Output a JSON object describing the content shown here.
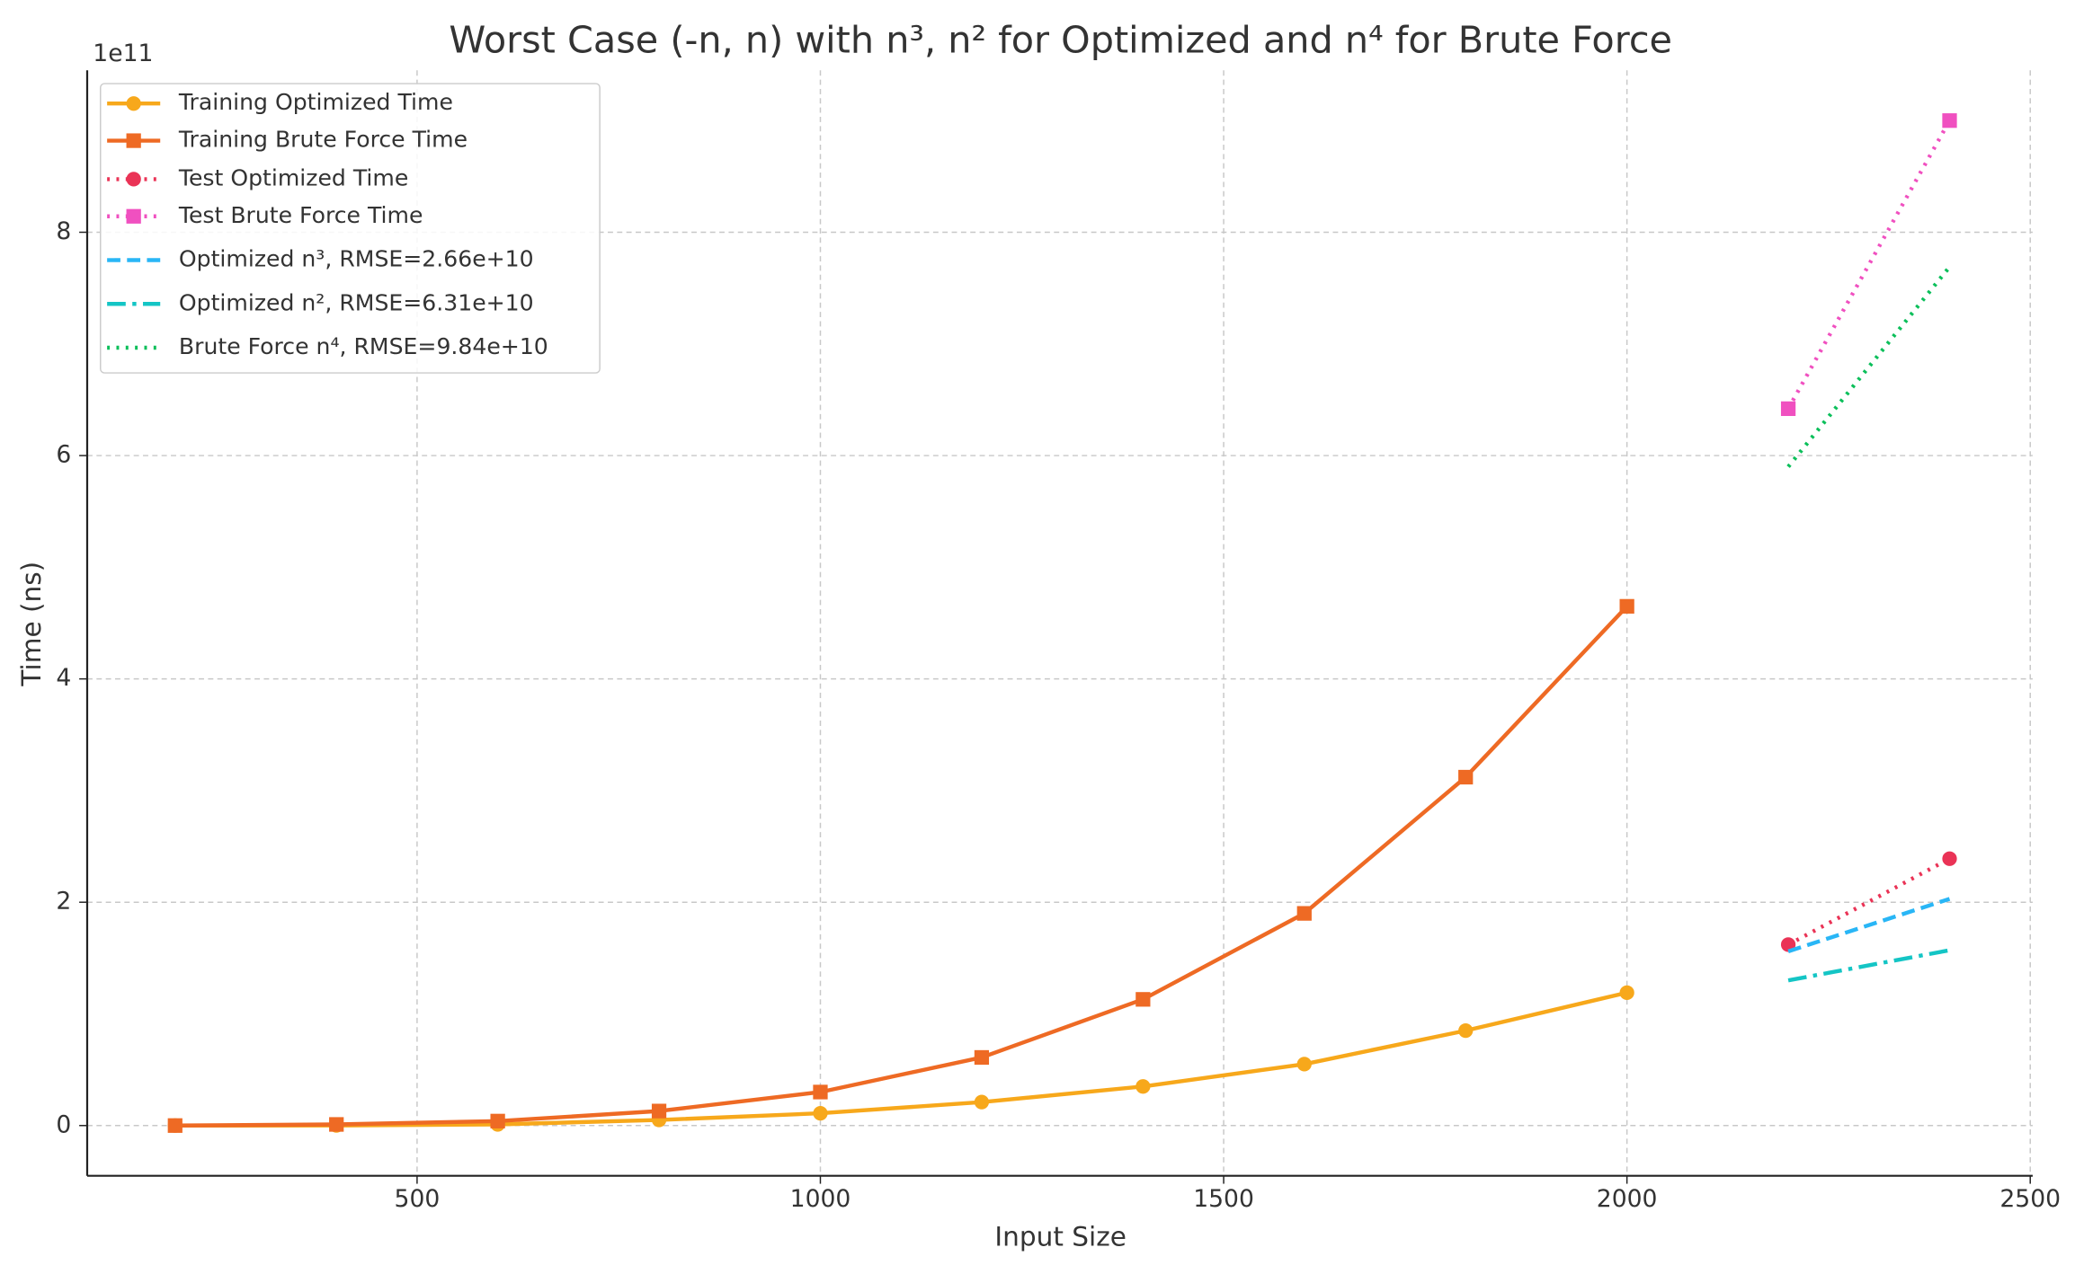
{
  "chart_data": {
    "type": "line",
    "title": "Worst Case (-n, n) with n³, n² for Optimized and n⁴ for Brute Force",
    "x_label": "Input Size",
    "y_label": "Time (ns)",
    "y_offset_label": "1e11",
    "xlim": [
      91,
      2503
    ],
    "ylim": [
      -0.45,
      9.45
    ],
    "xticks": [
      500,
      1000,
      1500,
      2000,
      2500
    ],
    "yticks": [
      0,
      2,
      4,
      6,
      8
    ],
    "grid": true,
    "legend": "upper left",
    "series": [
      {
        "name": "Training Optimized Time",
        "color": "#f7a81b",
        "style": "solid",
        "marker": "circle",
        "x": [
          200,
          400,
          600,
          800,
          1000,
          1200,
          1400,
          1600,
          1800,
          2000
        ],
        "values": [
          0,
          0.001,
          0.01,
          0.05,
          0.11,
          0.21,
          0.35,
          0.55,
          0.85,
          1.19
        ]
      },
      {
        "name": "Training Brute Force Time",
        "color": "#ee6a24",
        "style": "solid",
        "marker": "square",
        "x": [
          200,
          400,
          600,
          800,
          1000,
          1200,
          1400,
          1600,
          1800,
          2000
        ],
        "values": [
          0,
          0.01,
          0.04,
          0.13,
          0.3,
          0.61,
          1.13,
          1.9,
          3.12,
          4.65
        ]
      },
      {
        "name": "Test Optimized Time",
        "color": "#ea3356",
        "style": "dotted",
        "marker": "circle",
        "x": [
          2200,
          2400
        ],
        "values": [
          1.62,
          2.39
        ]
      },
      {
        "name": "Test Brute Force Time",
        "color": "#f050c0",
        "style": "dotted",
        "marker": "square",
        "x": [
          2200,
          2400
        ],
        "values": [
          6.42,
          9.0
        ]
      },
      {
        "name": "Optimized n³, RMSE=2.66e+10",
        "color": "#29b6f6",
        "style": "dashed",
        "marker": "none",
        "x": [
          2200,
          2400
        ],
        "values": [
          1.56,
          2.03
        ]
      },
      {
        "name": "Optimized n², RMSE=6.31e+10",
        "color": "#14c5c5",
        "style": "dashdot",
        "marker": "none",
        "x": [
          2200,
          2400
        ],
        "values": [
          1.3,
          1.57
        ]
      },
      {
        "name": "Brute Force n⁴, RMSE=9.84e+10",
        "color": "#0bbf5a",
        "style": "dotted",
        "marker": "none",
        "x": [
          2200,
          2400
        ],
        "values": [
          5.9,
          7.69
        ]
      }
    ]
  }
}
